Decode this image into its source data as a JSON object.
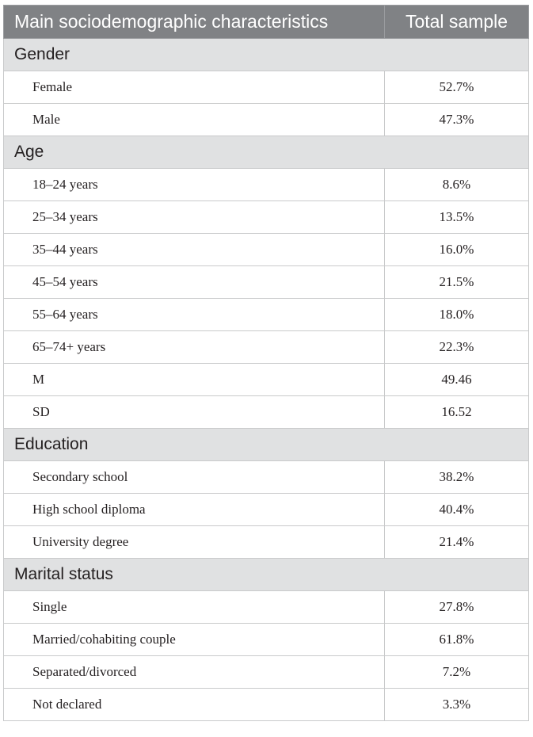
{
  "table": {
    "header": {
      "col1": "Main sociodemographic characteristics",
      "col2": "Total sample"
    },
    "sections": [
      {
        "title": "Gender",
        "rows": [
          {
            "label": "Female",
            "value": "52.7%"
          },
          {
            "label": "Male",
            "value": "47.3%"
          }
        ]
      },
      {
        "title": "Age",
        "rows": [
          {
            "label": "18–24 years",
            "value": "8.6%"
          },
          {
            "label": "25–34 years",
            "value": "13.5%"
          },
          {
            "label": "35–44 years",
            "value": "16.0%"
          },
          {
            "label": "45–54 years",
            "value": "21.5%"
          },
          {
            "label": "55–64 years",
            "value": "18.0%"
          },
          {
            "label": "65–74+ years",
            "value": "22.3%"
          },
          {
            "label": "M",
            "value": "49.46"
          },
          {
            "label": "SD",
            "value": "16.52"
          }
        ]
      },
      {
        "title": "Education",
        "rows": [
          {
            "label": "Secondary school",
            "value": "38.2%"
          },
          {
            "label": "High school diploma",
            "value": "40.4%"
          },
          {
            "label": "University degree",
            "value": "21.4%"
          }
        ]
      },
      {
        "title": "Marital status",
        "rows": [
          {
            "label": "Single",
            "value": "27.8%"
          },
          {
            "label": "Married/cohabiting couple",
            "value": "61.8%"
          },
          {
            "label": "Separated/divorced",
            "value": "7.2%"
          },
          {
            "label": "Not declared",
            "value": "3.3%"
          }
        ]
      }
    ]
  }
}
